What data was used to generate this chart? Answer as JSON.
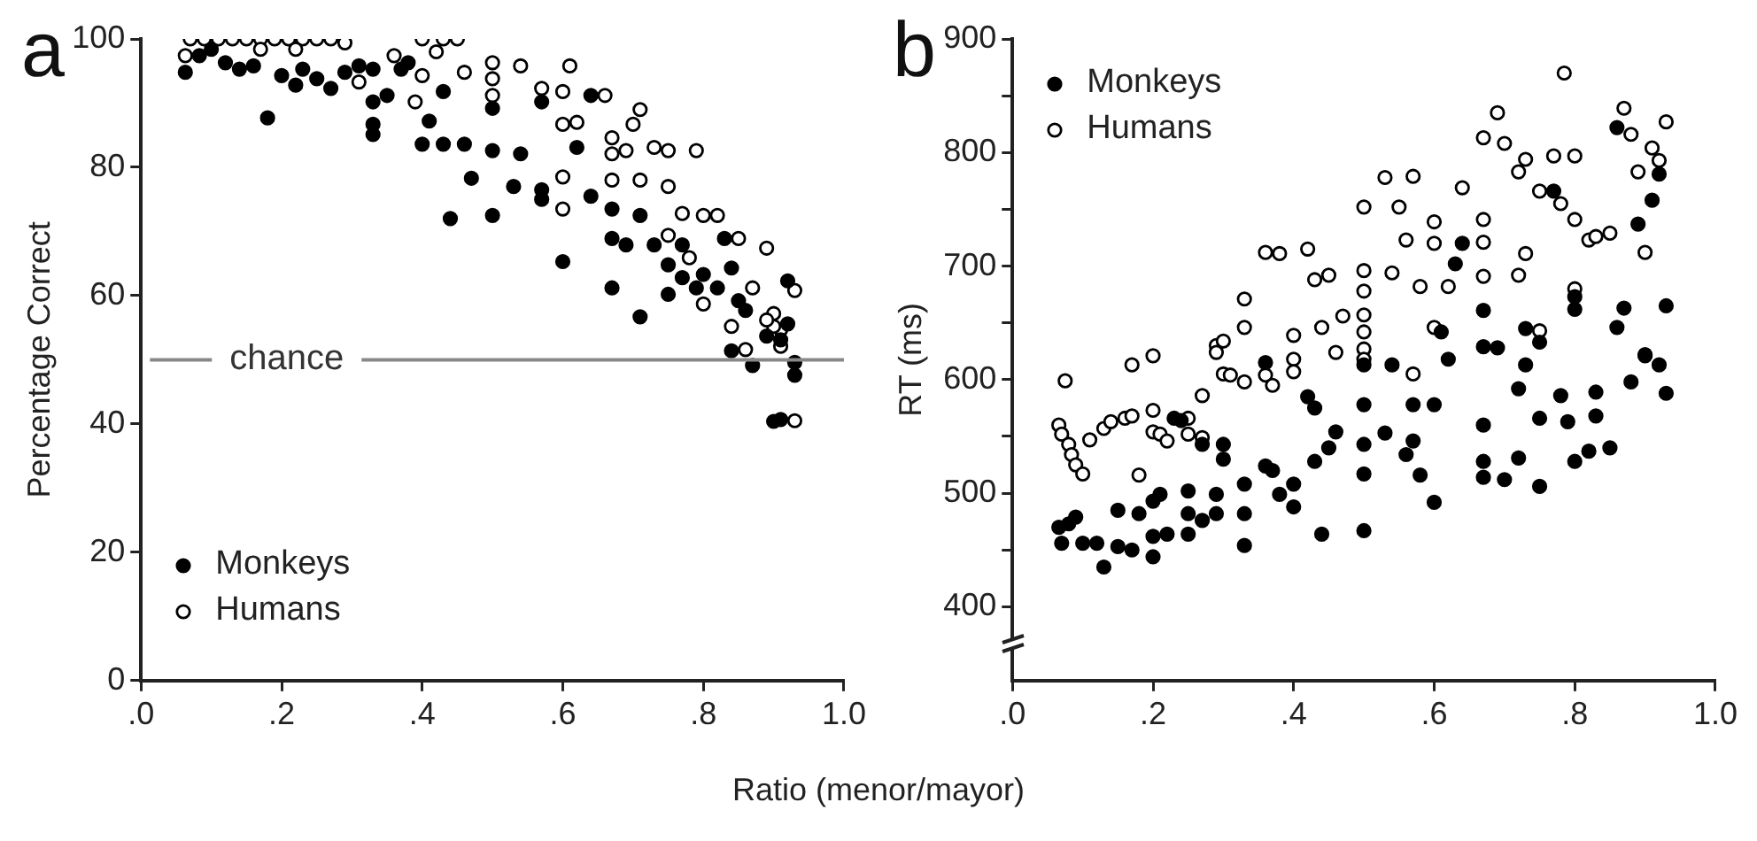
{
  "chart_data": [
    {
      "type": "scatter",
      "title": "a",
      "xlabel": "Ratio (menor/mayor)",
      "ylabel": "Percentage Correct",
      "xlim": [
        0,
        1
      ],
      "xticks": [
        {
          "value": 0,
          "label": ".0"
        },
        {
          "value": 0.2,
          "label": ".2"
        },
        {
          "value": 0.4,
          "label": ".4"
        },
        {
          "value": 0.6,
          "label": ".6"
        },
        {
          "value": 0.8,
          "label": ".8"
        },
        {
          "value": 1,
          "label": "1.0"
        }
      ],
      "ylim": [
        0,
        100
      ],
      "yticks": [
        0,
        20,
        40,
        60,
        80,
        100
      ],
      "grid": false,
      "legend": "bottom left",
      "marker": "circle",
      "ref_lines": [
        {
          "axis": "y",
          "value": 50,
          "label": "chance",
          "color": "#888888"
        }
      ],
      "series": [
        {
          "name": "Monkeys",
          "color": "#000000",
          "x": [
            0.063,
            0.083,
            0.1,
            0.12,
            0.14,
            0.16,
            0.18,
            0.2,
            0.22,
            0.23,
            0.25,
            0.27,
            0.29,
            0.31,
            0.33,
            0.33,
            0.33,
            0.33,
            0.35,
            0.37,
            0.38,
            0.4,
            0.41,
            0.43,
            0.43,
            0.44,
            0.46,
            0.47,
            0.5,
            0.5,
            0.5,
            0.54,
            0.53,
            0.57,
            0.57,
            0.57,
            0.6,
            0.62,
            0.64,
            0.64,
            0.67,
            0.67,
            0.67,
            0.69,
            0.71,
            0.71,
            0.73,
            0.75,
            0.75,
            0.77,
            0.77,
            0.79,
            0.8,
            0.82,
            0.83,
            0.84,
            0.85,
            0.86,
            0.92,
            0.92,
            0.91,
            0.84,
            0.87,
            0.89,
            0.93,
            0.93,
            0.9,
            0.91
          ],
          "values": [
            94.8,
            97.4,
            98.4,
            96.3,
            95.3,
            95.8,
            87.7,
            94.3,
            92.8,
            95.3,
            93.8,
            92.3,
            94.8,
            95.8,
            95.3,
            90.2,
            86.7,
            85.1,
            91.2,
            95.3,
            96.3,
            83.6,
            87.2,
            91.8,
            83.6,
            72,
            83.6,
            78.3,
            89.2,
            82.6,
            72.5,
            82.1,
            77,
            90.2,
            76.5,
            75,
            65.3,
            83.1,
            75.5,
            91.2,
            61.2,
            73.5,
            68.9,
            67.9,
            72.5,
            56.7,
            67.9,
            64.8,
            60.2,
            62.8,
            67.9,
            61.2,
            63.3,
            61.2,
            68.9,
            64.3,
            59.2,
            57.7,
            62.3,
            55.6,
            53.1,
            51.4,
            49.1,
            53.7,
            47.6,
            49.6,
            40.4,
            40.7
          ]
        },
        {
          "name": "Humans",
          "color": "#000000",
          "x": [
            0.07,
            0.09,
            0.11,
            0.13,
            0.15,
            0.17,
            0.19,
            0.21,
            0.23,
            0.25,
            0.27,
            0.29,
            0.063,
            0.17,
            0.22,
            0.31,
            0.36,
            0.4,
            0.43,
            0.45,
            0.42,
            0.4,
            0.46,
            0.39,
            0.5,
            0.5,
            0.5,
            0.54,
            0.57,
            0.6,
            0.61,
            0.66,
            0.71,
            0.7,
            0.6,
            0.62,
            0.67,
            0.67,
            0.69,
            0.73,
            0.75,
            0.79,
            0.6,
            0.6,
            0.67,
            0.71,
            0.75,
            0.77,
            0.8,
            0.82,
            0.75,
            0.78,
            0.85,
            0.89,
            0.8,
            0.87,
            0.93,
            0.84,
            0.9,
            0.91,
            0.86,
            0.91,
            0.9,
            0.93,
            0.89
          ],
          "values": [
            100,
            100,
            100,
            100,
            100,
            100,
            100,
            100,
            100,
            100,
            100,
            99.4,
            97.4,
            98.4,
            98.4,
            93.3,
            97.4,
            100,
            100,
            100,
            98,
            94.3,
            94.8,
            90.2,
            96.3,
            93.8,
            91.2,
            95.8,
            92.3,
            91.8,
            95.8,
            91.2,
            89,
            86.7,
            86.7,
            87,
            84.6,
            82.1,
            82.6,
            83.1,
            82.6,
            82.6,
            78.5,
            73.5,
            78,
            78,
            77,
            72.8,
            72.5,
            72.5,
            69.4,
            65.9,
            68.9,
            67.4,
            58.7,
            61.2,
            60.8,
            55.2,
            57.2,
            54.7,
            51.6,
            52.1,
            55.2,
            40.5,
            56.2
          ]
        }
      ]
    },
    {
      "type": "scatter",
      "title": "b",
      "ylabel": "RT (ms)",
      "xlim": [
        0,
        1
      ],
      "xticks": [
        {
          "value": 0,
          "label": ".0"
        },
        {
          "value": 0.2,
          "label": ".2"
        },
        {
          "value": 0.4,
          "label": ".4"
        },
        {
          "value": 0.6,
          "label": ".6"
        },
        {
          "value": 0.8,
          "label": ".8"
        },
        {
          "value": 1,
          "label": "1.0"
        }
      ],
      "ylim": [
        335,
        900
      ],
      "yticks": [
        400,
        {
          "value": 450,
          "label": null
        },
        500,
        {
          "value": 550,
          "label": null
        },
        600,
        {
          "value": 650,
          "label": null
        },
        700,
        {
          "value": 750,
          "label": null
        },
        800,
        {
          "value": 850,
          "label": null
        },
        900
      ],
      "grid": false,
      "legend": "top left",
      "marker": "circle",
      "series": [
        {
          "name": "Monkeys",
          "color": "#000000",
          "x": [
            0.86,
            0.92,
            0.91,
            0.89,
            0.77,
            0.64,
            0.63,
            0.67,
            0.8,
            0.8,
            0.87,
            0.93,
            0.86,
            0.61,
            0.73,
            0.75,
            0.67,
            0.69,
            0.62,
            0.73,
            0.9,
            0.92,
            0.36,
            0.5,
            0.54,
            0.9,
            0.88,
            0.93,
            0.83,
            0.78,
            0.72,
            0.83,
            0.79,
            0.75,
            0.8,
            0.82,
            0.85,
            0.67,
            0.67,
            0.72,
            0.67,
            0.7,
            0.75,
            0.6,
            0.57,
            0.6,
            0.58,
            0.56,
            0.57,
            0.53,
            0.5,
            0.5,
            0.5,
            0.5,
            0.44,
            0.46,
            0.45,
            0.43,
            0.43,
            0.42,
            0.4,
            0.4,
            0.38,
            0.37,
            0.36,
            0.33,
            0.33,
            0.33,
            0.3,
            0.3,
            0.29,
            0.29,
            0.27,
            0.25,
            0.25,
            0.25,
            0.23,
            0.24,
            0.27,
            0.21,
            0.2,
            0.2,
            0.2,
            0.22,
            0.18,
            0.15,
            0.17,
            0.15,
            0.13,
            0.12,
            0.1,
            0.07,
            0.066,
            0.09,
            0.08
          ],
          "values": [
            822,
            781,
            758,
            737,
            766,
            720,
            702,
            661,
            673,
            662,
            663,
            665,
            646,
            642,
            645,
            633,
            629,
            628,
            618,
            613,
            621,
            613,
            615,
            613,
            613,
            622,
            598,
            588,
            589,
            586,
            592,
            568,
            563,
            566,
            528,
            537,
            540,
            528,
            560,
            531,
            514,
            512,
            506,
            578,
            578,
            492,
            516,
            534,
            546,
            553,
            578,
            543,
            517,
            467,
            464,
            554,
            540,
            528,
            575,
            585,
            508,
            488,
            499,
            520,
            524,
            508,
            482,
            454,
            530,
            543,
            499,
            482,
            476,
            502,
            482,
            464,
            566,
            564,
            543,
            499,
            493,
            462,
            444,
            464,
            482,
            485,
            450,
            453,
            435,
            456,
            456,
            456,
            470,
            479,
            473
          ]
        },
        {
          "name": "Humans",
          "color": "#000000",
          "x": [
            0.785,
            0.69,
            0.87,
            0.93,
            0.88,
            0.67,
            0.7,
            0.91,
            0.77,
            0.8,
            0.73,
            0.72,
            0.89,
            0.92,
            0.53,
            0.57,
            0.64,
            0.75,
            0.78,
            0.5,
            0.55,
            0.6,
            0.67,
            0.8,
            0.56,
            0.6,
            0.67,
            0.82,
            0.83,
            0.85,
            0.36,
            0.38,
            0.42,
            0.73,
            0.9,
            0.43,
            0.45,
            0.5,
            0.54,
            0.58,
            0.62,
            0.67,
            0.72,
            0.8,
            0.5,
            0.33,
            0.5,
            0.33,
            0.44,
            0.47,
            0.6,
            0.75,
            0.5,
            0.4,
            0.29,
            0.3,
            0.29,
            0.46,
            0.5,
            0.2,
            0.17,
            0.075,
            0.3,
            0.33,
            0.36,
            0.37,
            0.4,
            0.4,
            0.57,
            0.5,
            0.066,
            0.07,
            0.08,
            0.084,
            0.09,
            0.1,
            0.11,
            0.13,
            0.14,
            0.16,
            0.17,
            0.18,
            0.2,
            0.2,
            0.21,
            0.22,
            0.25,
            0.25,
            0.27,
            0.27,
            0.31
          ],
          "values": [
            870,
            835,
            839,
            827,
            816,
            813,
            808,
            804,
            797,
            797,
            794,
            783,
            783,
            793,
            778,
            779,
            769,
            766,
            755,
            752,
            752,
            739,
            741,
            741,
            723,
            720,
            721,
            723,
            726,
            729,
            712,
            711,
            715,
            711,
            712,
            688,
            692,
            696,
            694,
            682,
            682,
            691,
            692,
            680,
            678,
            671,
            657,
            646,
            646,
            656,
            646,
            643,
            642,
            639,
            630,
            634,
            624,
            624,
            627,
            621,
            613,
            599,
            605,
            598,
            604,
            595,
            618,
            607,
            605,
            618,
            560,
            552,
            543,
            534,
            525,
            517,
            547,
            557,
            563,
            566,
            568,
            516,
            573,
            554,
            552,
            546,
            566,
            552,
            549,
            586,
            604
          ]
        }
      ]
    }
  ]
}
